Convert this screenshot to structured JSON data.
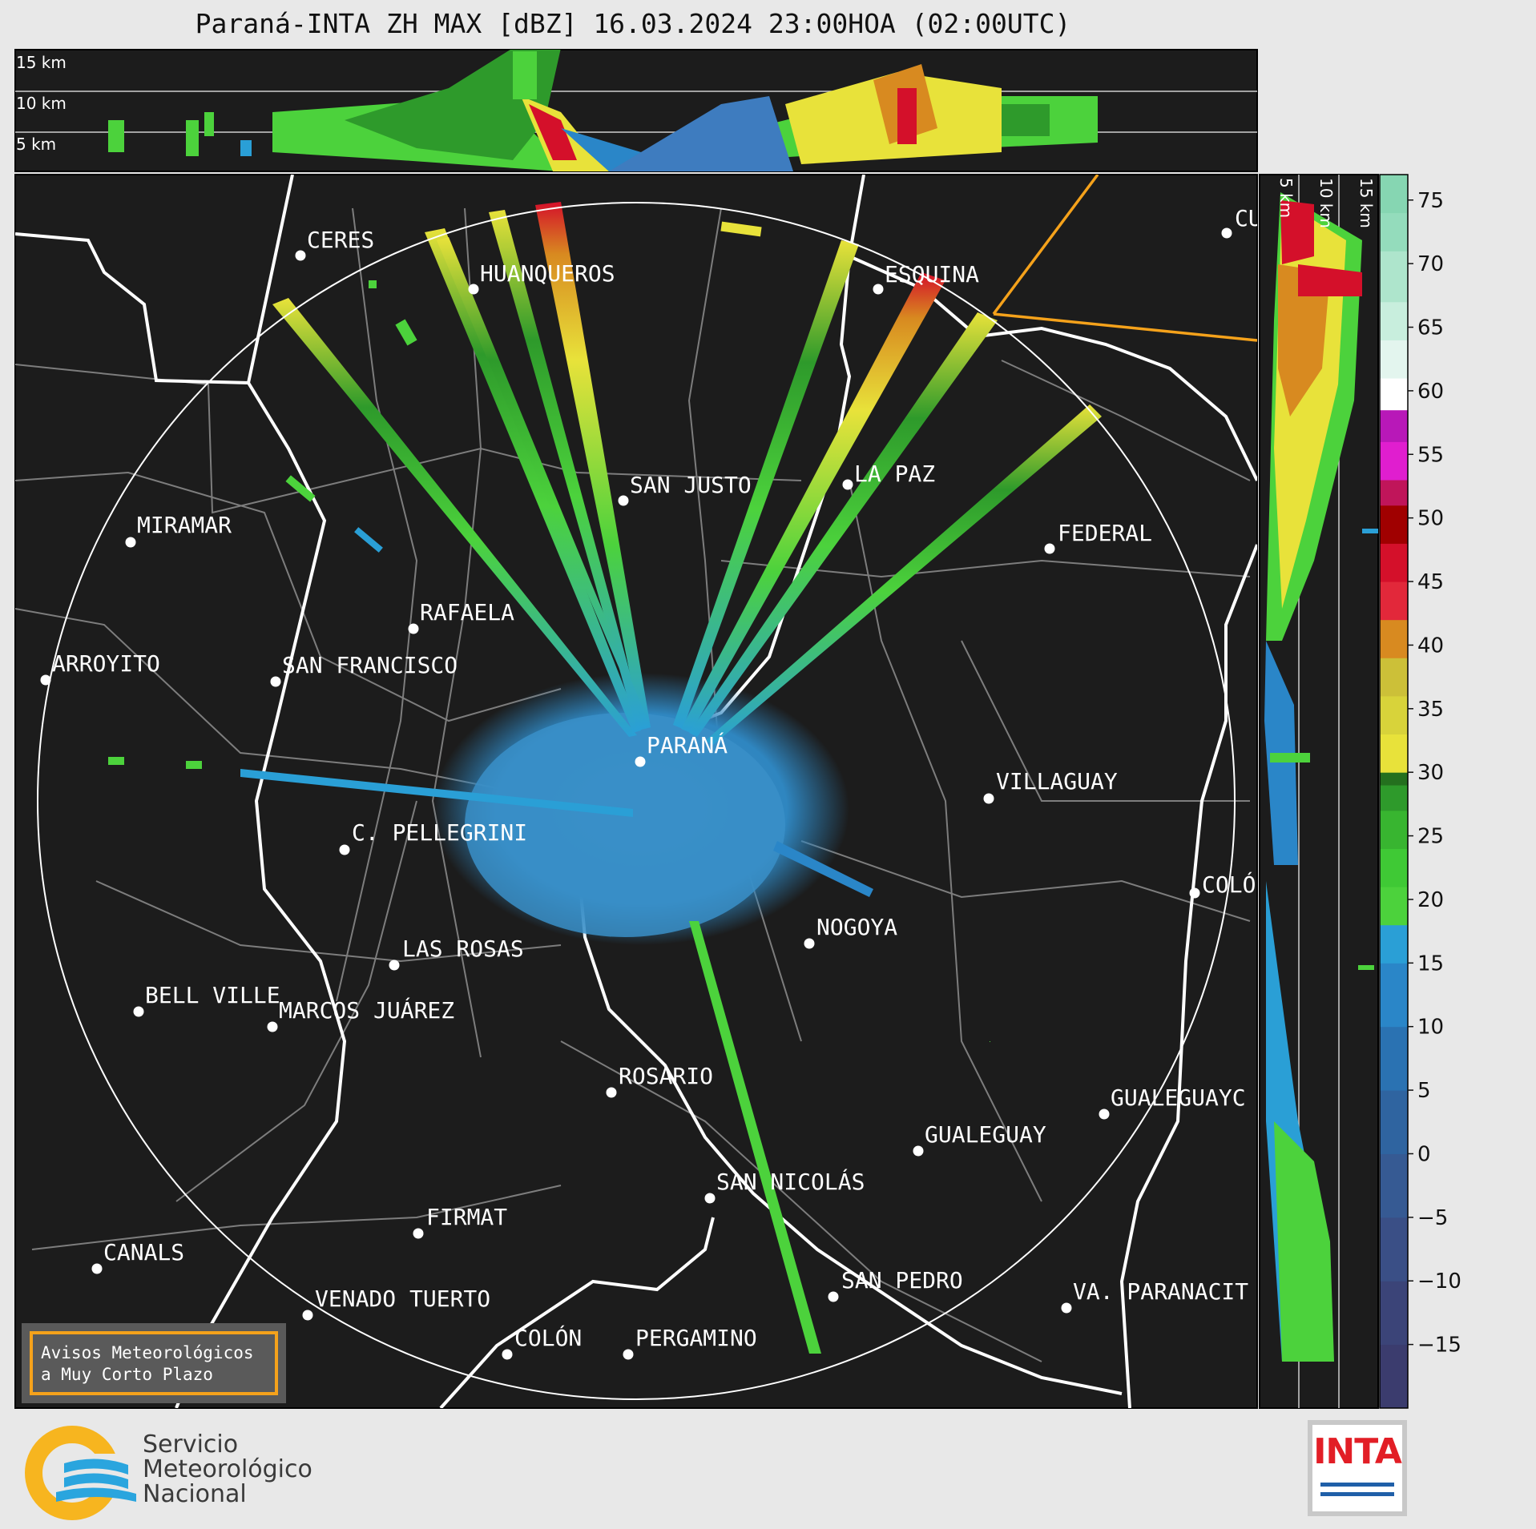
{
  "title": "Paraná-INTA ZH MAX [dBZ] 16.03.2024 23:00HOA (02:00UTC)",
  "top_panel": {
    "height_labels": [
      "15 km",
      "10 km",
      "5 km"
    ]
  },
  "side_panel": {
    "height_labels": [
      "5 km",
      "10 km",
      "15 km"
    ]
  },
  "colorbar": {
    "ticks": [
      "75",
      "70",
      "65",
      "60",
      "55",
      "50",
      "45",
      "40",
      "35",
      "30",
      "25",
      "20",
      "15",
      "10",
      "5",
      "0",
      "−5",
      "−10",
      "−15"
    ],
    "range_dbz": [
      -20,
      77
    ]
  },
  "cities": [
    {
      "name": "CERES"
    },
    {
      "name": "HUANQUEROS"
    },
    {
      "name": "ESQUINA"
    },
    {
      "name": "CU"
    },
    {
      "name": "SAN JUSTO"
    },
    {
      "name": "LA PAZ"
    },
    {
      "name": "MIRAMAR"
    },
    {
      "name": "FEDERAL"
    },
    {
      "name": "RAFAELA"
    },
    {
      "name": "ARROYITO"
    },
    {
      "name": "SAN FRANCISCO"
    },
    {
      "name": "PARANÁ"
    },
    {
      "name": "VILLAGUAY"
    },
    {
      "name": "C. PELLEGRINI"
    },
    {
      "name": "COLÓ"
    },
    {
      "name": "NOGOYA"
    },
    {
      "name": "LAS ROSAS"
    },
    {
      "name": "BELL VILLE"
    },
    {
      "name": "MARCOS JUÁREZ"
    },
    {
      "name": "ROSARIO"
    },
    {
      "name": "GUALEGUAYC"
    },
    {
      "name": "GUALEGUAY"
    },
    {
      "name": "SAN NICOLÁS"
    },
    {
      "name": "FIRMAT"
    },
    {
      "name": "CANALS"
    },
    {
      "name": "SAN PEDRO"
    },
    {
      "name": "VA. PARANACIT"
    },
    {
      "name": "VENADO TUERTO"
    },
    {
      "name": "COLÓN"
    },
    {
      "name": "PERGAMINO"
    }
  ],
  "notice": {
    "line1": "Avisos Meteorológicos",
    "line2": "a Muy Corto Plazo"
  },
  "footer": {
    "smn_line1": "Servicio",
    "smn_line2": "Meteorológico",
    "smn_line3": "Nacional",
    "inta_logo_text": "INTA"
  },
  "colors": {
    "map_bg": "#1c1c1c",
    "range_ring": "#ffffff",
    "highlight": "#f5a21b"
  }
}
